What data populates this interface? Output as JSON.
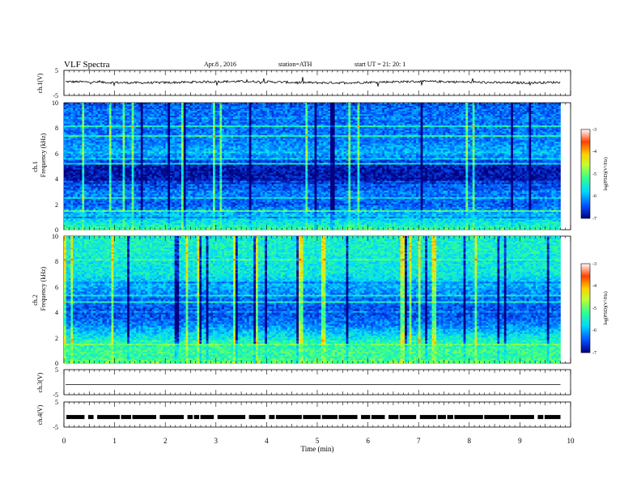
{
  "header": {
    "title": "VLF Spectra",
    "date": "Apr.8 , 2016",
    "station": "station=ATH",
    "start": "start UT = 21: 20: 1"
  },
  "panels": {
    "ch1_wave": {
      "ylabel": "ch.1(V)",
      "ticks": [
        "5",
        "-5"
      ]
    },
    "ch1_spec": {
      "ylabel_line1": "ch.1",
      "ylabel_line2": "Frequency (kHz)",
      "ticks": [
        "10",
        "8",
        "6",
        "4",
        "2",
        "0"
      ]
    },
    "ch2_spec": {
      "ylabel_line1": "ch.2",
      "ylabel_line2": "Frequency (kHz)",
      "ticks": [
        "10",
        "8",
        "6",
        "4",
        "2",
        "0"
      ]
    },
    "ch3_wave": {
      "ylabel": "ch.3(V)",
      "ticks": [
        "5",
        "-5"
      ]
    },
    "ch4_wave": {
      "ylabel": "ch.4(V)",
      "ticks": [
        "5",
        "-5"
      ]
    }
  },
  "colorbar": {
    "label": "log(PSD)(V²/Hz)",
    "ticks": [
      "-3",
      "-4",
      "-5",
      "-6",
      "-7"
    ],
    "colors": [
      "#000080",
      "#0050ff",
      "#00d8ff",
      "#30ff90",
      "#c0ff30",
      "#ffd000",
      "#ff4000",
      "#ffffff"
    ]
  },
  "xaxis": {
    "label": "Time (min)",
    "ticks": [
      "0",
      "1",
      "2",
      "3",
      "4",
      "5",
      "6",
      "7",
      "8",
      "9",
      "10"
    ]
  },
  "chart_data": [
    {
      "type": "line",
      "title": "VLF Spectra",
      "xlabel": "Time (min)",
      "ylabel": "ch.1(V)",
      "xlim": [
        0,
        10
      ],
      "ylim": [
        -5,
        5
      ],
      "data_end_min": 9.8,
      "baseline_v": 0.3
    },
    {
      "type": "heatmap",
      "xlabel": "Time (min)",
      "ylabel": "Frequency (kHz)",
      "channel": "ch.1",
      "xlim": [
        0,
        10
      ],
      "ylim": [
        0,
        10
      ],
      "zlabel": "log(PSD)(V²/Hz)",
      "zlim": [
        -7,
        -3
      ],
      "band_profile_freq_khz": [
        0,
        0.5,
        1,
        2,
        3,
        4,
        5,
        6,
        7,
        8,
        9,
        10
      ],
      "band_profile_logpsd": [
        -5.2,
        -5.6,
        -5.8,
        -6.4,
        -6.2,
        -6.9,
        -6.8,
        -6.0,
        -6.2,
        -6.3,
        -6.3,
        -6.4
      ]
    },
    {
      "type": "heatmap",
      "xlabel": "Time (min)",
      "ylabel": "Frequency (kHz)",
      "channel": "ch.2",
      "xlim": [
        0,
        10
      ],
      "ylim": [
        0,
        10
      ],
      "zlabel": "log(PSD)(V²/Hz)",
      "zlim": [
        -7,
        -3
      ],
      "band_profile_freq_khz": [
        0,
        0.5,
        1,
        2,
        3,
        4,
        5,
        6,
        7,
        8,
        9,
        10
      ],
      "band_profile_logpsd": [
        -5.0,
        -5.3,
        -5.2,
        -5.6,
        -6.2,
        -6.5,
        -6.3,
        -6.0,
        -5.6,
        -5.6,
        -5.5,
        -5.5
      ]
    },
    {
      "type": "line",
      "xlabel": "Time (min)",
      "ylabel": "ch.3(V)",
      "xlim": [
        0,
        10
      ],
      "ylim": [
        -5,
        5
      ],
      "data_end_min": 9.8,
      "baseline_v": -1.0
    },
    {
      "type": "line",
      "xlabel": "Time (min)",
      "ylabel": "ch.4(V)",
      "xlim": [
        0,
        10
      ],
      "ylim": [
        -5,
        5
      ],
      "data_end_min": 9.8,
      "baseline_v": -1.0
    }
  ]
}
